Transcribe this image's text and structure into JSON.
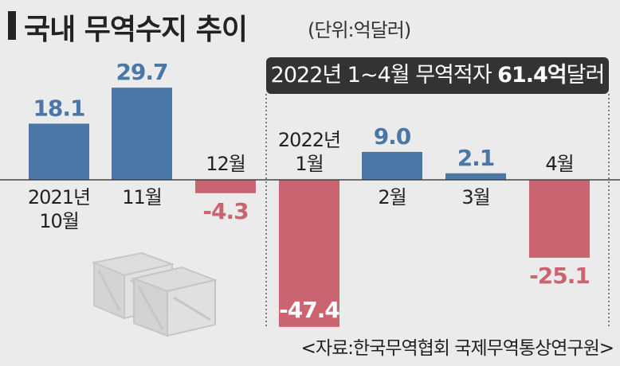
{
  "header": {
    "title": "국내 무역수지 추이",
    "unit": "(단위:억달러)"
  },
  "banner": {
    "prefix": "2022년 1~4월 무역적자 ",
    "highlight": "61.4억",
    "suffix": "달러"
  },
  "source": "<자료:한국무역협회 국제무역통상연구원>",
  "colors": {
    "positive": "#4a77a6",
    "negative": "#c96470",
    "background": "#ebebeb"
  },
  "icons": [
    "shipping-crate-icon",
    "shipping-crate-icon"
  ],
  "chart_data": {
    "type": "bar",
    "title": "국내 무역수지 추이",
    "unit": "억달러",
    "categories": [
      [
        "2021년",
        "10월"
      ],
      [
        "11월"
      ],
      [
        "12월"
      ],
      [
        "2022년",
        "1월"
      ],
      [
        "2월"
      ],
      [
        "3월"
      ],
      [
        "4월"
      ]
    ],
    "values": [
      18.1,
      29.7,
      -4.3,
      -47.4,
      9.0,
      2.1,
      -25.1
    ],
    "value_labels": [
      "18.1",
      "29.7",
      "-4.3",
      "-47.4",
      "9.0",
      "2.1",
      "-25.1"
    ],
    "ylim": [
      -47.4,
      29.7
    ],
    "grid": false,
    "legend": "none"
  }
}
